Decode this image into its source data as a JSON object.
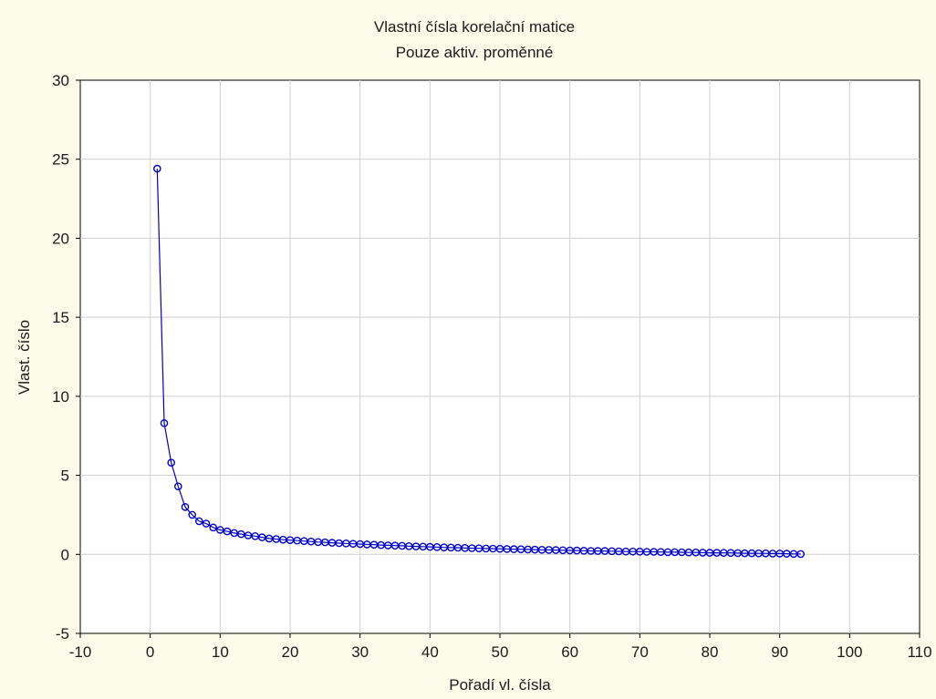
{
  "chart_data": {
    "type": "line",
    "title": "Vlastní čísla  korelační matice",
    "subtitle": "Pouze aktiv. proměnné",
    "xlabel": "Pořadí vl. čísla",
    "ylabel": "Vlast. číslo",
    "xlim": [
      -10,
      110
    ],
    "ylim": [
      -5,
      30
    ],
    "xticks": [
      -10,
      0,
      10,
      20,
      30,
      40,
      50,
      60,
      70,
      80,
      90,
      100,
      110
    ],
    "yticks": [
      -5,
      0,
      5,
      10,
      15,
      20,
      25,
      30
    ],
    "grid": true,
    "colors": {
      "series": "#0000cc",
      "background": "#fdfbea",
      "plot": "#ffffff",
      "grid": "#cfcfcf"
    },
    "x": [
      1,
      2,
      3,
      4,
      5,
      6,
      7,
      8,
      9,
      10,
      11,
      12,
      13,
      14,
      15,
      16,
      17,
      18,
      19,
      20,
      21,
      22,
      23,
      24,
      25,
      26,
      27,
      28,
      29,
      30,
      31,
      32,
      33,
      34,
      35,
      36,
      37,
      38,
      39,
      40,
      41,
      42,
      43,
      44,
      45,
      46,
      47,
      48,
      49,
      50,
      51,
      52,
      53,
      54,
      55,
      56,
      57,
      58,
      59,
      60,
      61,
      62,
      63,
      64,
      65,
      66,
      67,
      68,
      69,
      70,
      71,
      72,
      73,
      74,
      75,
      76,
      77,
      78,
      79,
      80,
      81,
      82,
      83,
      84,
      85,
      86,
      87,
      88,
      89,
      90,
      91,
      92,
      93
    ],
    "values": [
      24.4,
      8.3,
      5.8,
      4.3,
      3.0,
      2.5,
      2.1,
      1.95,
      1.7,
      1.55,
      1.45,
      1.35,
      1.28,
      1.2,
      1.15,
      1.08,
      1.0,
      0.97,
      0.93,
      0.9,
      0.87,
      0.84,
      0.81,
      0.78,
      0.76,
      0.73,
      0.71,
      0.69,
      0.67,
      0.65,
      0.63,
      0.61,
      0.59,
      0.57,
      0.55,
      0.54,
      0.52,
      0.5,
      0.49,
      0.47,
      0.46,
      0.44,
      0.43,
      0.42,
      0.4,
      0.39,
      0.38,
      0.37,
      0.36,
      0.35,
      0.34,
      0.33,
      0.32,
      0.31,
      0.3,
      0.29,
      0.28,
      0.27,
      0.26,
      0.25,
      0.24,
      0.23,
      0.22,
      0.21,
      0.21,
      0.2,
      0.19,
      0.18,
      0.18,
      0.17,
      0.16,
      0.16,
      0.15,
      0.14,
      0.14,
      0.13,
      0.12,
      0.12,
      0.11,
      0.1,
      0.1,
      0.09,
      0.09,
      0.08,
      0.07,
      0.07,
      0.06,
      0.06,
      0.05,
      0.05,
      0.04,
      0.03,
      0.02
    ]
  }
}
